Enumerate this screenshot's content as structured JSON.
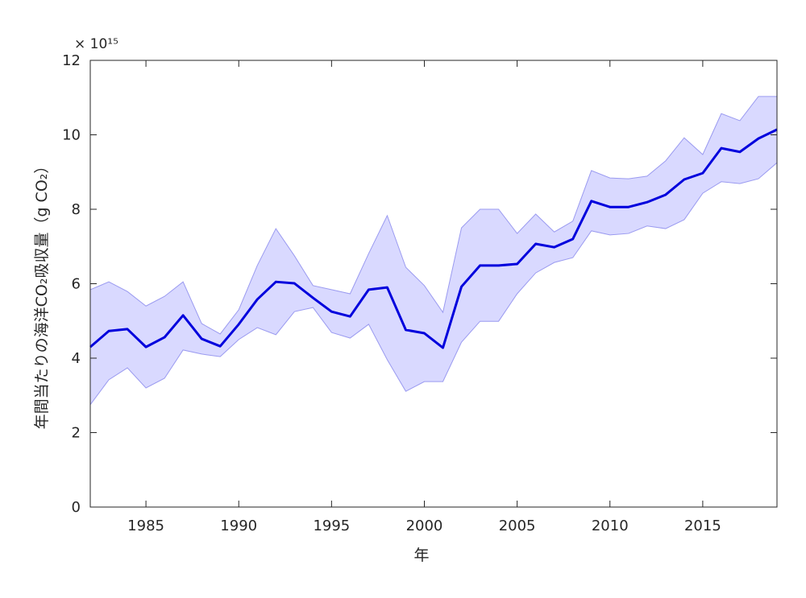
{
  "chart_data": {
    "type": "line",
    "title": "",
    "xlabel": "年",
    "ylabel": "年間当たりの海洋CO₂吸収量（g CO₂）",
    "y_exponent_label": "× 10¹⁵",
    "xlim": [
      1982,
      2019
    ],
    "ylim": [
      0,
      12
    ],
    "xticks": [
      1985,
      1990,
      1995,
      2000,
      2005,
      2010,
      2015
    ],
    "yticks": [
      0,
      2,
      4,
      6,
      8,
      10,
      12
    ],
    "grid": false,
    "x": [
      1982,
      1983,
      1984,
      1985,
      1986,
      1987,
      1988,
      1989,
      1990,
      1991,
      1992,
      1993,
      1994,
      1995,
      1996,
      1997,
      1998,
      1999,
      2000,
      2001,
      2002,
      2003,
      2004,
      2005,
      2006,
      2007,
      2008,
      2009,
      2010,
      2011,
      2012,
      2013,
      2014,
      2015,
      2016,
      2017,
      2018,
      2019
    ],
    "series": [
      {
        "name": "mean",
        "color": "#0000dd",
        "values": [
          4.3,
          4.73,
          4.78,
          4.3,
          4.56,
          5.15,
          4.52,
          4.32,
          4.91,
          5.58,
          6.05,
          6.01,
          5.62,
          5.25,
          5.12,
          5.84,
          5.9,
          4.76,
          4.67,
          4.28,
          5.92,
          6.49,
          6.49,
          6.53,
          7.07,
          6.98,
          7.2,
          8.22,
          8.06,
          8.06,
          8.19,
          8.39,
          8.8,
          8.97,
          9.64,
          9.54,
          9.9,
          10.14
        ]
      },
      {
        "name": "upper",
        "color": "#9a9af0",
        "values": [
          5.84,
          6.05,
          5.79,
          5.4,
          5.66,
          6.05,
          4.93,
          4.65,
          5.3,
          6.49,
          7.48,
          6.75,
          5.95,
          5.84,
          5.73,
          6.81,
          7.83,
          6.44,
          5.95,
          5.23,
          7.5,
          8.0,
          8.0,
          7.35,
          7.87,
          7.39,
          7.68,
          9.04,
          8.84,
          8.82,
          8.89,
          9.3,
          9.92,
          9.47,
          10.57,
          10.38,
          11.03,
          11.03
        ]
      },
      {
        "name": "lower",
        "color": "#9a9af0",
        "values": [
          2.75,
          3.42,
          3.74,
          3.2,
          3.46,
          4.22,
          4.11,
          4.04,
          4.5,
          4.82,
          4.63,
          5.25,
          5.36,
          4.69,
          4.54,
          4.91,
          3.96,
          3.11,
          3.37,
          3.37,
          4.43,
          4.99,
          4.99,
          5.73,
          6.29,
          6.57,
          6.7,
          7.42,
          7.31,
          7.35,
          7.55,
          7.48,
          7.72,
          8.43,
          8.74,
          8.69,
          8.82,
          9.25
        ]
      }
    ],
    "band_fill": "#d9d9ff"
  }
}
